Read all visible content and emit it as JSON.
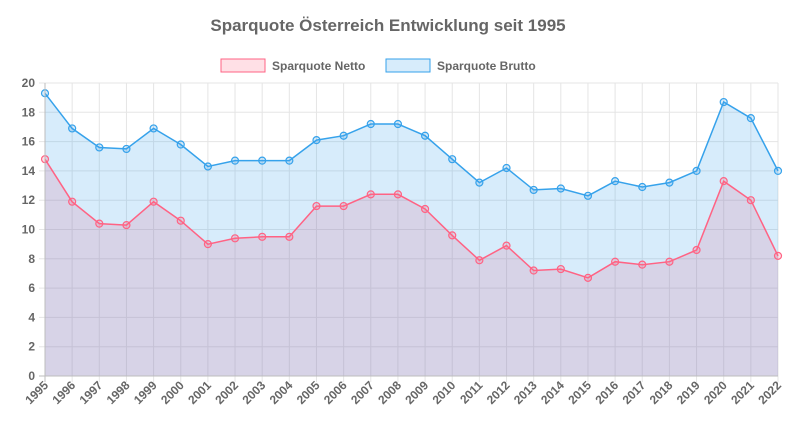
{
  "chart_data": {
    "type": "area",
    "title": "Sparquote Österreich Entwicklung seit 1995",
    "xlabel": "",
    "ylabel": "",
    "ylim": [
      0,
      20
    ],
    "yticks": [
      0,
      2,
      4,
      6,
      8,
      10,
      12,
      14,
      16,
      18,
      20
    ],
    "grid": true,
    "legend_position": "top",
    "categories": [
      "1995",
      "1996",
      "1997",
      "1998",
      "1999",
      "2000",
      "2001",
      "2002",
      "2003",
      "2004",
      "2005",
      "2006",
      "2007",
      "2008",
      "2009",
      "2010",
      "2011",
      "2012",
      "2013",
      "2014",
      "2015",
      "2016",
      "2017",
      "2018",
      "2019",
      "2020",
      "2021",
      "2022"
    ],
    "series": [
      {
        "name": "Sparquote Netto",
        "line_color": "#ff6384",
        "fill_color": "rgba(255,99,132,0.2)",
        "values": [
          14.8,
          11.9,
          10.4,
          10.3,
          11.9,
          10.6,
          9.0,
          9.4,
          9.5,
          9.5,
          11.6,
          11.6,
          12.4,
          12.4,
          11.4,
          9.6,
          7.9,
          8.9,
          7.2,
          7.3,
          6.7,
          7.8,
          7.6,
          7.8,
          8.6,
          13.3,
          12.0,
          8.2
        ]
      },
      {
        "name": "Sparquote Brutto",
        "line_color": "#36a2eb",
        "fill_color": "rgba(54,162,235,0.2)",
        "values": [
          19.3,
          16.9,
          15.6,
          15.5,
          16.9,
          15.8,
          14.3,
          14.7,
          14.7,
          14.7,
          16.1,
          16.4,
          17.2,
          17.2,
          16.4,
          14.8,
          13.2,
          14.2,
          12.7,
          12.8,
          12.3,
          13.3,
          12.9,
          13.2,
          14.0,
          18.7,
          17.6,
          14.0
        ]
      }
    ]
  }
}
